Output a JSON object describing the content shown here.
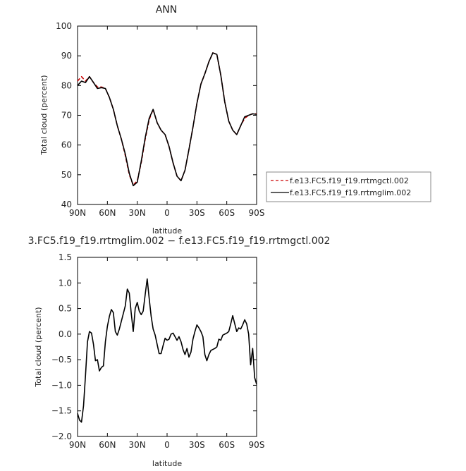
{
  "chart_data": [
    {
      "type": "line",
      "title": "ANN",
      "xlabel": "latitude",
      "ylabel": "Total cloud (percent)",
      "ylim": [
        40,
        100
      ],
      "yticks": [
        40,
        50,
        60,
        70,
        80,
        90,
        100
      ],
      "xlim": [
        90,
        -90
      ],
      "xtick_values": [
        90,
        60,
        30,
        0,
        -30,
        -60,
        -90
      ],
      "xtick_labels": [
        "90N",
        "60N",
        "30N",
        "0",
        "30S",
        "60S",
        "90S"
      ],
      "legend_position": "right",
      "series": [
        {
          "name": "f.e13.FC5.f19_f19.rrtmgctl.002",
          "color": "#cc0000",
          "dash": "dashed",
          "x": [
            90,
            86,
            82,
            78,
            74,
            70,
            66,
            62,
            58,
            54,
            50,
            46,
            42,
            38,
            34,
            30,
            26,
            22,
            18,
            14,
            10,
            6,
            2,
            -2,
            -6,
            -10,
            -14,
            -18,
            -22,
            -26,
            -30,
            -34,
            -38,
            -42,
            -46,
            -50,
            -54,
            -58,
            -62,
            -66,
            -70,
            -74,
            -78,
            -82,
            -86,
            -90
          ],
          "y": [
            81.5,
            83,
            81.5,
            83,
            81,
            79.5,
            79.5,
            79,
            76,
            72,
            66.5,
            62,
            56.5,
            50,
            46.5,
            48,
            54,
            62,
            68.5,
            72,
            67.5,
            65,
            63.5,
            59.5,
            54,
            49.5,
            48,
            51.5,
            58.5,
            66,
            74,
            80.5,
            84,
            88,
            91,
            90.5,
            83.5,
            74.5,
            68,
            65,
            63.5,
            66.5,
            69,
            70,
            70.5,
            70.5
          ]
        },
        {
          "name": "f.e13.FC5.f19_f19.rrtmglim.002",
          "color": "#000000",
          "dash": "solid",
          "x": [
            90,
            86,
            82,
            78,
            74,
            70,
            66,
            62,
            58,
            54,
            50,
            46,
            42,
            38,
            34,
            30,
            26,
            22,
            18,
            14,
            10,
            6,
            2,
            -2,
            -6,
            -10,
            -14,
            -18,
            -22,
            -26,
            -30,
            -34,
            -38,
            -42,
            -46,
            -50,
            -54,
            -58,
            -62,
            -66,
            -70,
            -74,
            -78,
            -82,
            -86,
            -90
          ],
          "y": [
            80,
            81.5,
            81,
            83,
            81,
            79,
            79.3,
            79,
            76,
            72,
            66.5,
            62,
            57,
            50.5,
            46.3,
            47.5,
            54.5,
            62.5,
            69,
            72,
            67.5,
            65,
            63.5,
            59.5,
            54,
            49.5,
            48,
            51.5,
            58.5,
            66,
            74,
            80.5,
            84,
            88,
            91,
            90.5,
            83.5,
            74.5,
            68,
            65,
            63.5,
            66.5,
            69.5,
            70,
            70.5,
            70.3
          ]
        }
      ]
    },
    {
      "type": "line",
      "title": "3.FC5.f19_f19.rrtmglim.002 − f.e13.FC5.f19_f19.rrtmgctl.002",
      "xlabel": "latitude",
      "ylabel": "Total cloud (percent)",
      "ylim": [
        -2.0,
        1.5
      ],
      "yticks": [
        -2.0,
        -1.5,
        -1.0,
        -0.5,
        0.0,
        0.5,
        1.0,
        1.5
      ],
      "ytick_labels": [
        "−2.0",
        "−1.5",
        "−1.0",
        "−0.5",
        "0.0",
        "0.5",
        "1.0",
        "1.5"
      ],
      "xlim": [
        90,
        -90
      ],
      "xtick_values": [
        90,
        60,
        30,
        0,
        -30,
        -60,
        -90
      ],
      "xtick_labels": [
        "90N",
        "60N",
        "30N",
        "0",
        "30S",
        "60S",
        "90S"
      ],
      "series": [
        {
          "name": "",
          "color": "#000000",
          "x": [
            90,
            88,
            86,
            84,
            82,
            80,
            78,
            76,
            74,
            72,
            70,
            68,
            66,
            64,
            62,
            60,
            58,
            56,
            54,
            52,
            50,
            48,
            46,
            44,
            42,
            40,
            38,
            36,
            34,
            32,
            30,
            28,
            26,
            24,
            22,
            20,
            18,
            16,
            14,
            12,
            10,
            8,
            6,
            4,
            2,
            0,
            -2,
            -4,
            -6,
            -8,
            -10,
            -12,
            -14,
            -16,
            -18,
            -20,
            -22,
            -24,
            -26,
            -28,
            -30,
            -32,
            -34,
            -36,
            -38,
            -40,
            -42,
            -44,
            -46,
            -48,
            -50,
            -52,
            -54,
            -56,
            -58,
            -60,
            -62,
            -64,
            -66,
            -68,
            -70,
            -72,
            -74,
            -76,
            -78,
            -80,
            -82,
            -84,
            -86,
            -88,
            -90
          ],
          "y": [
            -1.55,
            -1.68,
            -1.72,
            -1.4,
            -0.8,
            -0.15,
            0.05,
            0.02,
            -0.2,
            -0.52,
            -0.5,
            -0.72,
            -0.65,
            -0.62,
            -0.15,
            0.15,
            0.35,
            0.48,
            0.42,
            0.05,
            -0.02,
            0.1,
            0.25,
            0.4,
            0.55,
            0.88,
            0.8,
            0.4,
            0.05,
            0.5,
            0.62,
            0.45,
            0.38,
            0.45,
            0.78,
            1.08,
            0.7,
            0.35,
            0.1,
            -0.02,
            -0.2,
            -0.38,
            -0.38,
            -0.22,
            -0.08,
            -0.12,
            -0.1,
            0.0,
            0.02,
            -0.05,
            -0.12,
            -0.05,
            -0.15,
            -0.3,
            -0.4,
            -0.28,
            -0.45,
            -0.35,
            -0.1,
            0.05,
            0.18,
            0.12,
            0.05,
            -0.05,
            -0.4,
            -0.52,
            -0.4,
            -0.32,
            -0.3,
            -0.28,
            -0.25,
            -0.1,
            -0.12,
            -0.02,
            0.0,
            0.02,
            0.05,
            0.2,
            0.36,
            0.2,
            0.05,
            0.12,
            0.1,
            0.18,
            0.28,
            0.2,
            0.0,
            -0.6,
            -0.28,
            -0.85,
            -0.98
          ]
        }
      ]
    }
  ]
}
